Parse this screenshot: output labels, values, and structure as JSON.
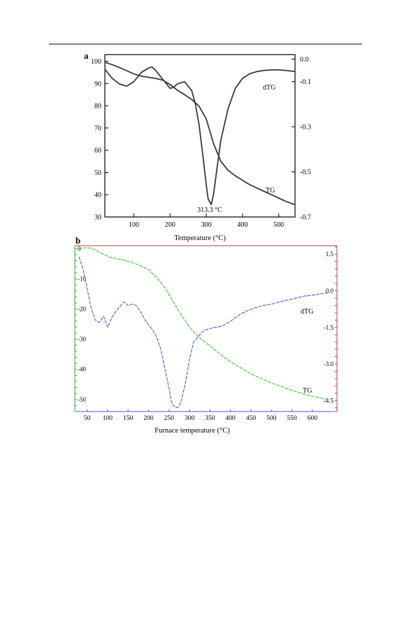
{
  "colors": {
    "a_curves": "#3a3a3a",
    "b_tg": "#33cc33",
    "b_dtg": "#5555dd",
    "b_frame_top_right": "#b04040",
    "b_frame_left": "#33aa33",
    "b_frame_bottom": "#5555cc"
  },
  "chart_data": [
    {
      "panel_label": "a",
      "type": "line",
      "xlabel": "Temperature (°C)",
      "xlim": [
        20,
        545
      ],
      "x_ticks": [
        100,
        200,
        300,
        400,
        500
      ],
      "ylim_left": [
        30,
        103
      ],
      "y_ticks_left": [
        100,
        90,
        80,
        70,
        60,
        50,
        40,
        30
      ],
      "ylim_right": [
        -0.7,
        0.02
      ],
      "y_ticks_right": [
        0.0,
        -0.1,
        -0.3,
        -0.5,
        -0.7
      ],
      "y_tick_labels_right": [
        "0.0",
        "-0.1",
        "-0.3",
        "-0.5",
        "-0.7"
      ],
      "annotation": "313.3 °C",
      "series": [
        {
          "name": "TG",
          "axis": "left",
          "x": [
            20,
            40,
            60,
            80,
            100,
            120,
            140,
            160,
            180,
            200,
            220,
            240,
            260,
            280,
            300,
            320,
            340,
            360,
            380,
            400,
            420,
            440,
            460,
            480,
            500,
            520,
            545
          ],
          "y": [
            99.5,
            98.5,
            97.2,
            95.8,
            94.3,
            93.3,
            92.8,
            92.3,
            91.5,
            89.5,
            87.0,
            85.0,
            82.8,
            79.8,
            74.0,
            63.0,
            55.0,
            51.0,
            48.5,
            46.5,
            44.5,
            43.0,
            41.5,
            40.0,
            38.5,
            37.0,
            35.5
          ]
        },
        {
          "name": "dTG",
          "axis": "right",
          "x": [
            20,
            40,
            60,
            80,
            100,
            120,
            140,
            150,
            160,
            180,
            200,
            210,
            220,
            240,
            260,
            270,
            280,
            290,
            300,
            305,
            313.3,
            320,
            330,
            340,
            360,
            380,
            400,
            420,
            440,
            460,
            480,
            500,
            520,
            545
          ],
          "y": [
            -0.045,
            -0.085,
            -0.11,
            -0.12,
            -0.1,
            -0.06,
            -0.04,
            -0.035,
            -0.05,
            -0.09,
            -0.13,
            -0.125,
            -0.11,
            -0.1,
            -0.14,
            -0.2,
            -0.29,
            -0.42,
            -0.56,
            -0.62,
            -0.645,
            -0.6,
            -0.48,
            -0.36,
            -0.22,
            -0.13,
            -0.085,
            -0.065,
            -0.055,
            -0.05,
            -0.048,
            -0.048,
            -0.05,
            -0.055
          ]
        }
      ]
    },
    {
      "panel_label": "b",
      "type": "line",
      "xlabel": "Furnace temperature (°C)",
      "xlim": [
        20,
        660
      ],
      "x_ticks": [
        50,
        100,
        150,
        200,
        250,
        300,
        350,
        400,
        450,
        500,
        550,
        600
      ],
      "ylim_left": [
        -54,
        1
      ],
      "y_ticks_left": [
        0,
        -10,
        -20,
        -30,
        -40,
        -50
      ],
      "y_tick_labels_left": [
        "0",
        "-10",
        "-20",
        "-30",
        "-40",
        "-50"
      ],
      "ylim_right": [
        -4.95,
        1.85
      ],
      "y_ticks_right": [
        1.5,
        0.0,
        -1.5,
        -3.0,
        -4.5
      ],
      "y_tick_labels_right": [
        "1.5",
        "0.0",
        "-1.5",
        "-3.0",
        "-4.5"
      ],
      "series": [
        {
          "name": "TG",
          "axis": "left",
          "x": [
            30,
            45,
            60,
            75,
            90,
            105,
            120,
            140,
            160,
            180,
            200,
            220,
            240,
            260,
            280,
            300,
            320,
            340,
            360,
            380,
            400,
            450,
            500,
            550,
            600,
            640
          ],
          "y": [
            0,
            0.3,
            0.2,
            -0.8,
            -1.8,
            -2.8,
            -3.3,
            -3.8,
            -4.6,
            -5.6,
            -7.0,
            -9.5,
            -13.0,
            -17.5,
            -22.0,
            -26.0,
            -29.0,
            -31.2,
            -33.3,
            -35.5,
            -37.5,
            -41.5,
            -44.5,
            -47.0,
            -49.0,
            -50.0
          ]
        },
        {
          "name": "dTG",
          "axis": "right",
          "x": [
            30,
            40,
            50,
            60,
            70,
            80,
            90,
            95,
            100,
            110,
            120,
            130,
            140,
            150,
            160,
            170,
            180,
            190,
            200,
            210,
            220,
            230,
            240,
            250,
            255,
            260,
            270,
            275,
            280,
            290,
            300,
            310,
            320,
            330,
            340,
            350,
            360,
            370,
            380,
            390,
            400,
            420,
            440,
            460,
            480,
            500,
            520,
            540,
            560,
            580,
            600,
            620,
            640
          ],
          "y": [
            1.4,
            0.9,
            0.1,
            -0.7,
            -1.2,
            -1.3,
            -1.05,
            -1.25,
            -1.5,
            -1.1,
            -0.85,
            -0.65,
            -0.45,
            -0.6,
            -0.55,
            -0.6,
            -0.85,
            -1.15,
            -1.4,
            -1.6,
            -1.9,
            -2.4,
            -3.2,
            -4.0,
            -4.5,
            -4.7,
            -4.8,
            -4.72,
            -4.5,
            -3.8,
            -2.8,
            -2.1,
            -1.9,
            -1.7,
            -1.6,
            -1.55,
            -1.5,
            -1.48,
            -1.45,
            -1.35,
            -1.25,
            -1.0,
            -0.82,
            -0.7,
            -0.6,
            -0.55,
            -0.45,
            -0.38,
            -0.3,
            -0.22,
            -0.18,
            -0.12,
            -0.08
          ]
        }
      ]
    }
  ]
}
